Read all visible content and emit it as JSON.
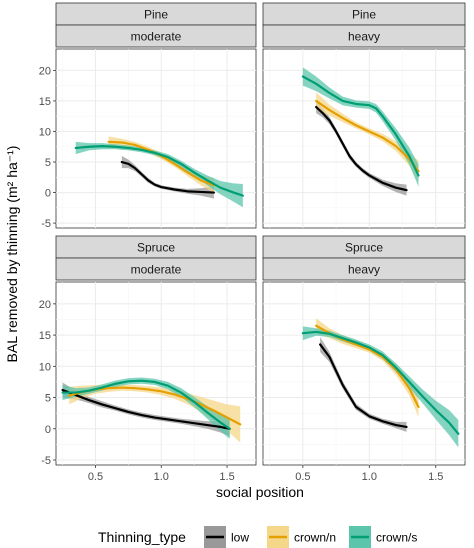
{
  "chart_data": {
    "type": "line",
    "xlabel": "social position",
    "ylabel": "BAL removed by thinning (m² ha⁻¹)",
    "x_ticks": [
      0.5,
      1.0,
      1.5
    ],
    "x_tick_labels": [
      "0.5",
      "1.0",
      "1.5"
    ],
    "y_ticks": [
      -5,
      0,
      5,
      10,
      15,
      20
    ],
    "y_tick_labels": [
      "-5",
      "0",
      "5",
      "10",
      "15",
      "20"
    ],
    "xlim": [
      0.2,
      1.72
    ],
    "ylim": [
      -5.8,
      23.5
    ],
    "grid": true,
    "legend": {
      "title": "Thinning_type",
      "position": "bottom",
      "entries": [
        {
          "label": "low",
          "color": "#000000",
          "band": "#999999"
        },
        {
          "label": "crown/n",
          "color": "#E69F00",
          "band": "#F5D78A"
        },
        {
          "label": "crown/s",
          "color": "#009E73",
          "band": "#5CC6AC"
        }
      ]
    },
    "panels": [
      {
        "species": "Pine",
        "intensity": "moderate",
        "series": [
          {
            "name": "low",
            "x": [
              0.7,
              0.75,
              0.8,
              0.85,
              0.9,
              0.95,
              1.0,
              1.1,
              1.2,
              1.3,
              1.4
            ],
            "y": [
              5.0,
              4.7,
              4.0,
              3.0,
              2.0,
              1.3,
              0.9,
              0.5,
              0.2,
              0.1,
              0.0
            ],
            "lo": [
              4.0,
              4.0,
              3.5,
              2.6,
              1.6,
              1.0,
              0.6,
              0.2,
              -0.2,
              -0.5,
              -1.0
            ],
            "hi": [
              6.0,
              5.4,
              4.5,
              3.4,
              2.4,
              1.6,
              1.2,
              0.8,
              0.6,
              0.7,
              1.0
            ]
          },
          {
            "name": "crown/n",
            "x": [
              0.6,
              0.7,
              0.8,
              0.9,
              1.0,
              1.1,
              1.2,
              1.3,
              1.4
            ],
            "y": [
              8.3,
              8.2,
              7.8,
              7.0,
              6.0,
              4.7,
              3.3,
              2.0,
              1.2
            ],
            "lo": [
              7.4,
              7.6,
              7.3,
              6.5,
              5.5,
              4.2,
              2.7,
              1.2,
              0.0
            ],
            "hi": [
              9.2,
              8.8,
              8.3,
              7.5,
              6.5,
              5.2,
              3.9,
              2.8,
              2.4
            ]
          },
          {
            "name": "crown/s",
            "x": [
              0.35,
              0.45,
              0.55,
              0.65,
              0.75,
              0.85,
              0.95,
              1.05,
              1.15,
              1.25,
              1.35,
              1.45,
              1.55,
              1.62
            ],
            "y": [
              7.3,
              7.5,
              7.6,
              7.5,
              7.3,
              7.0,
              6.5,
              5.8,
              4.7,
              3.3,
              2.0,
              0.8,
              0.0,
              -0.5
            ],
            "lo": [
              6.3,
              6.9,
              7.1,
              7.1,
              6.9,
              6.6,
              6.1,
              5.3,
              4.2,
              2.7,
              1.2,
              -0.3,
              -1.5,
              -2.4
            ],
            "hi": [
              8.3,
              8.1,
              8.1,
              7.9,
              7.7,
              7.4,
              6.9,
              6.3,
              5.2,
              3.9,
              2.8,
              1.9,
              1.5,
              1.4
            ]
          }
        ]
      },
      {
        "species": "Pine",
        "intensity": "heavy",
        "series": [
          {
            "name": "low",
            "x": [
              0.6,
              0.65,
              0.7,
              0.75,
              0.8,
              0.85,
              0.9,
              0.95,
              1.0,
              1.1,
              1.2,
              1.28
            ],
            "y": [
              14.0,
              13.0,
              11.8,
              10.0,
              8.0,
              6.0,
              4.6,
              3.6,
              2.8,
              1.6,
              0.8,
              0.4
            ],
            "lo": [
              13.0,
              12.3,
              11.2,
              9.5,
              7.5,
              5.5,
              4.2,
              3.2,
              2.4,
              1.1,
              0.1,
              -0.5
            ],
            "hi": [
              15.0,
              13.7,
              12.4,
              10.5,
              8.5,
              6.5,
              5.0,
              4.0,
              3.2,
              2.1,
              1.5,
              1.3
            ]
          },
          {
            "name": "crown/n",
            "x": [
              0.6,
              0.7,
              0.8,
              0.9,
              1.0,
              1.1,
              1.2,
              1.3,
              1.37
            ],
            "y": [
              15.0,
              13.5,
              12.2,
              11.0,
              10.0,
              9.0,
              7.6,
              5.5,
              3.5
            ],
            "lo": [
              13.6,
              12.6,
              11.5,
              10.5,
              9.5,
              8.4,
              6.8,
              4.4,
              1.8
            ],
            "hi": [
              16.4,
              14.4,
              12.9,
              11.5,
              10.5,
              9.6,
              8.4,
              6.6,
              5.2
            ]
          },
          {
            "name": "crown/s",
            "x": [
              0.5,
              0.6,
              0.7,
              0.8,
              0.9,
              1.0,
              1.05,
              1.1,
              1.2,
              1.3,
              1.37
            ],
            "y": [
              19.0,
              17.8,
              16.3,
              15.0,
              14.5,
              14.3,
              13.8,
              12.5,
              9.5,
              6.0,
              2.8
            ],
            "lo": [
              17.5,
              16.6,
              15.4,
              14.3,
              13.9,
              13.7,
              13.1,
              11.7,
              8.5,
              4.6,
              1.0
            ],
            "hi": [
              20.5,
              19.0,
              17.2,
              15.7,
              15.1,
              14.9,
              14.5,
              13.3,
              10.5,
              7.4,
              4.6
            ]
          }
        ]
      },
      {
        "species": "Spruce",
        "intensity": "moderate",
        "series": [
          {
            "name": "low",
            "x": [
              0.25,
              0.35,
              0.45,
              0.55,
              0.65,
              0.75,
              0.85,
              0.95,
              1.05,
              1.15,
              1.25,
              1.35,
              1.45,
              1.52
            ],
            "y": [
              6.2,
              5.4,
              4.6,
              3.9,
              3.3,
              2.7,
              2.2,
              1.8,
              1.5,
              1.2,
              0.9,
              0.6,
              0.3,
              0.0
            ],
            "lo": [
              5.0,
              4.7,
              4.1,
              3.4,
              2.9,
              2.3,
              1.8,
              1.4,
              1.1,
              0.8,
              0.4,
              0.0,
              -0.6,
              -1.2
            ],
            "hi": [
              7.4,
              6.1,
              5.1,
              4.4,
              3.7,
              3.1,
              2.6,
              2.2,
              1.9,
              1.6,
              1.4,
              1.2,
              1.2,
              1.2
            ]
          },
          {
            "name": "crown/n",
            "x": [
              0.3,
              0.4,
              0.5,
              0.6,
              0.7,
              0.8,
              0.9,
              1.0,
              1.1,
              1.2,
              1.3,
              1.4,
              1.5,
              1.6
            ],
            "y": [
              5.3,
              5.9,
              6.3,
              6.5,
              6.6,
              6.5,
              6.3,
              6.0,
              5.5,
              4.8,
              3.9,
              2.9,
              1.8,
              0.7
            ],
            "lo": [
              3.9,
              4.9,
              5.6,
              5.9,
              6.1,
              6.0,
              5.8,
              5.4,
              4.8,
              3.9,
              2.7,
              1.3,
              -0.3,
              -2.2
            ],
            "hi": [
              6.7,
              6.9,
              7.0,
              7.1,
              7.1,
              7.0,
              6.8,
              6.6,
              6.2,
              5.7,
              5.1,
              4.5,
              3.9,
              3.6
            ]
          },
          {
            "name": "crown/s",
            "x": [
              0.25,
              0.35,
              0.45,
              0.55,
              0.65,
              0.75,
              0.85,
              0.95,
              1.05,
              1.15,
              1.25,
              1.35,
              1.45,
              1.52
            ],
            "y": [
              5.8,
              5.8,
              6.1,
              6.6,
              7.2,
              7.6,
              7.7,
              7.5,
              6.9,
              5.8,
              4.3,
              2.6,
              1.0,
              0.0
            ],
            "lo": [
              4.6,
              5.1,
              5.6,
              6.1,
              6.7,
              7.1,
              7.2,
              7.0,
              6.3,
              5.1,
              3.5,
              1.6,
              -0.4,
              -1.6
            ],
            "hi": [
              7.0,
              6.5,
              6.6,
              7.1,
              7.7,
              8.1,
              8.2,
              8.0,
              7.5,
              6.5,
              5.1,
              3.6,
              2.4,
              1.6
            ]
          }
        ]
      },
      {
        "species": "Spruce",
        "intensity": "heavy",
        "series": [
          {
            "name": "low",
            "x": [
              0.63,
              0.7,
              0.8,
              0.9,
              1.0,
              1.1,
              1.2,
              1.28
            ],
            "y": [
              13.5,
              11.5,
              7.0,
              3.5,
              2.0,
              1.2,
              0.6,
              0.3
            ],
            "lo": [
              12.3,
              10.7,
              6.4,
              3.0,
              1.6,
              0.8,
              0.1,
              -0.5
            ],
            "hi": [
              14.7,
              12.3,
              7.6,
              4.0,
              2.4,
              1.6,
              1.1,
              1.1
            ]
          },
          {
            "name": "crown/n",
            "x": [
              0.6,
              0.7,
              0.8,
              0.9,
              1.0,
              1.1,
              1.2,
              1.3,
              1.37
            ],
            "y": [
              16.5,
              15.3,
              14.3,
              13.5,
              12.7,
              11.5,
              9.5,
              6.5,
              3.5
            ],
            "lo": [
              15.3,
              14.5,
              13.6,
              12.9,
              12.2,
              10.9,
              8.6,
              5.4,
              1.9
            ],
            "hi": [
              17.7,
              16.1,
              15.0,
              14.1,
              13.2,
              12.1,
              10.4,
              7.6,
              5.1
            ]
          },
          {
            "name": "crown/s",
            "x": [
              0.5,
              0.6,
              0.7,
              0.8,
              0.9,
              1.0,
              1.1,
              1.2,
              1.3,
              1.4,
              1.5,
              1.6,
              1.67
            ],
            "y": [
              15.3,
              15.5,
              15.2,
              14.5,
              13.8,
              13.0,
              11.8,
              9.8,
              7.5,
              5.2,
              3.0,
              1.0,
              -0.8
            ],
            "lo": [
              14.2,
              14.9,
              14.7,
              14.0,
              13.3,
              12.5,
              11.2,
              9.1,
              6.6,
              4.1,
              1.5,
              -1.0,
              -3.0
            ],
            "hi": [
              16.4,
              16.1,
              15.7,
              15.0,
              14.3,
              13.5,
              12.4,
              10.5,
              8.4,
              6.3,
              4.5,
              3.0,
              1.4
            ]
          }
        ]
      }
    ]
  }
}
